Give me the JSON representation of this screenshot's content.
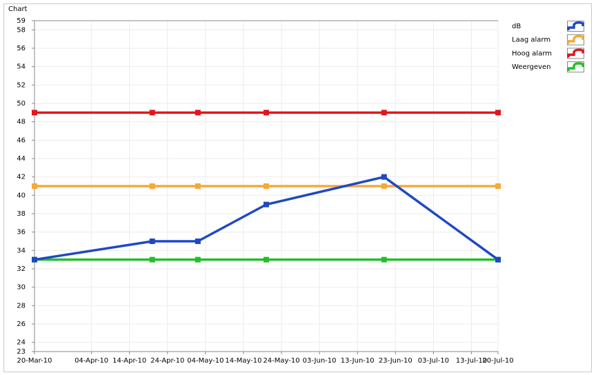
{
  "chart_data": {
    "type": "line",
    "title": "Chart",
    "x": [
      "2010-03-20",
      "2010-04-20",
      "2010-05-02",
      "2010-05-20",
      "2010-06-20",
      "2010-07-20"
    ],
    "xlim": [
      "2010-03-20",
      "2010-07-20"
    ],
    "xticks": [
      {
        "value": "2010-03-20",
        "label": "20-Mar-10"
      },
      {
        "value": "2010-04-04",
        "label": "04-Apr-10"
      },
      {
        "value": "2010-04-14",
        "label": "14-Apr-10"
      },
      {
        "value": "2010-04-24",
        "label": "24-Apr-10"
      },
      {
        "value": "2010-05-04",
        "label": "04-May-10"
      },
      {
        "value": "2010-05-14",
        "label": "14-May-10"
      },
      {
        "value": "2010-05-24",
        "label": "24-May-10"
      },
      {
        "value": "2010-06-03",
        "label": "03-Jun-10"
      },
      {
        "value": "2010-06-13",
        "label": "13-Jun-10"
      },
      {
        "value": "2010-06-23",
        "label": "23-Jun-10"
      },
      {
        "value": "2010-07-03",
        "label": "03-Jul-10"
      },
      {
        "value": "2010-07-13",
        "label": "13-Jul-10"
      },
      {
        "value": "2010-07-20",
        "label": "20-Jul-10"
      }
    ],
    "ylim": [
      23,
      59
    ],
    "yticks": [
      23,
      24,
      26,
      28,
      30,
      32,
      34,
      36,
      38,
      40,
      42,
      44,
      46,
      48,
      50,
      52,
      54,
      56,
      58,
      59
    ],
    "grid": true,
    "legend_position": "right",
    "series": [
      {
        "name": "dB",
        "color": "#1f48c2",
        "values": [
          33,
          35,
          35,
          39,
          42,
          33
        ]
      },
      {
        "name": "Laag alarm",
        "color": "#f6a93b",
        "values": [
          41,
          41,
          41,
          41,
          41,
          41
        ]
      },
      {
        "name": "Hoog alarm",
        "color": "#e3161b",
        "values": [
          49,
          49,
          49,
          49,
          49,
          49
        ]
      },
      {
        "name": "Weergeven",
        "color": "#20c02a",
        "values": [
          33,
          33,
          33,
          33,
          33,
          33
        ]
      }
    ]
  }
}
